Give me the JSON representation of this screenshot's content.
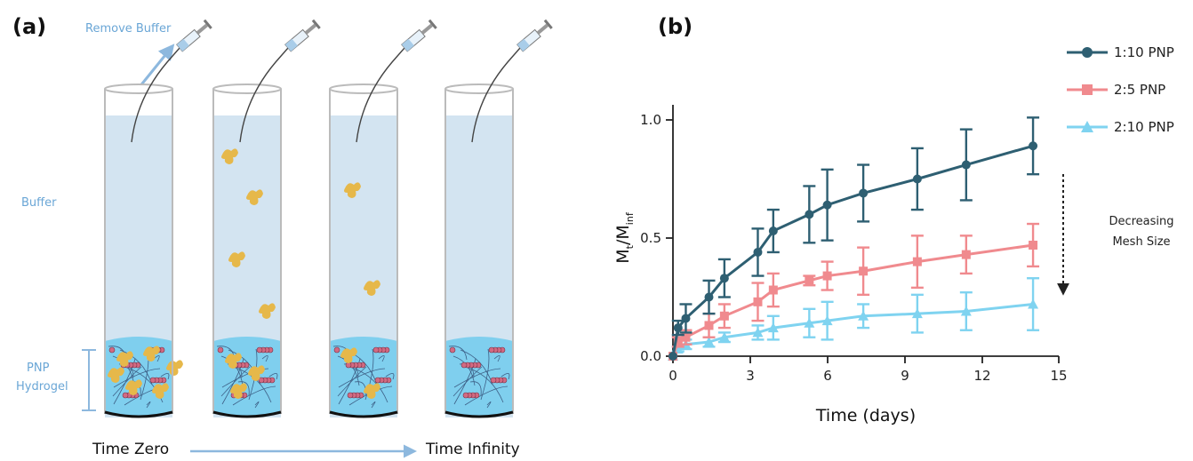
{
  "panel_a": {
    "label": "(a)",
    "remove_buffer": "Remove Buffer",
    "buffer": "Buffer",
    "hydrogel_line1": "PNP",
    "hydrogel_line2": "Hydrogel",
    "time_zero": "Time Zero",
    "time_infinity": "Time Infinity",
    "colors": {
      "buffer": "#d3e4f1",
      "gel": "#7fcfee",
      "cargo": "#e6b84a",
      "np": "#d36a82",
      "arrow": "#8db8de"
    },
    "icons": [
      "syringe-icon",
      "cargo-icon",
      "nanoparticle-icon"
    ]
  },
  "panel_b": {
    "label": "(b)",
    "annotation_line1": "Decreasing",
    "annotation_line2": "Mesh Size"
  },
  "chart_data": {
    "type": "line",
    "xlabel": "Time (days)",
    "ylabel_main": "M",
    "ylabel_sub1": "t",
    "ylabel_mid": "/M",
    "ylabel_sub2": "inf",
    "xlim": [
      0,
      15
    ],
    "ylim": [
      0,
      1.1
    ],
    "xticks": [
      "0",
      "3",
      "6",
      "9",
      "12",
      "15"
    ],
    "yticks": [
      "0.0",
      "0.5",
      "1.0"
    ],
    "grid": false,
    "legend_position": "top-right",
    "series": [
      {
        "name": "1:10 PNP",
        "color": "#2e5f72",
        "marker": "circle",
        "x": [
          0,
          0.2,
          0.5,
          1.4,
          2,
          3.3,
          3.9,
          5.3,
          6,
          7.4,
          9.5,
          11.4,
          14
        ],
        "y": [
          0,
          0.12,
          0.16,
          0.25,
          0.33,
          0.44,
          0.53,
          0.6,
          0.64,
          0.69,
          0.75,
          0.81,
          0.89
        ],
        "err": [
          0,
          0.03,
          0.06,
          0.07,
          0.08,
          0.1,
          0.09,
          0.12,
          0.15,
          0.12,
          0.13,
          0.15,
          0.12
        ]
      },
      {
        "name": "2:5 PNP",
        "color": "#f08a8e",
        "marker": "square",
        "x": [
          0,
          0.2,
          0.5,
          1.4,
          2,
          3.3,
          3.9,
          5.3,
          6,
          7.4,
          9.5,
          11.4,
          14
        ],
        "y": [
          0,
          0.06,
          0.08,
          0.13,
          0.17,
          0.23,
          0.28,
          0.32,
          0.34,
          0.36,
          0.4,
          0.43,
          0.47
        ],
        "err": [
          0,
          0.02,
          0.03,
          0.05,
          0.05,
          0.08,
          0.07,
          0.02,
          0.06,
          0.1,
          0.11,
          0.08,
          0.09
        ]
      },
      {
        "name": "2:10 PNP",
        "color": "#7fd3f0",
        "marker": "triangle",
        "x": [
          0,
          0.2,
          0.5,
          1.4,
          2,
          3.3,
          3.9,
          5.3,
          6,
          7.4,
          9.5,
          11.4,
          14
        ],
        "y": [
          0,
          0.03,
          0.05,
          0.06,
          0.08,
          0.1,
          0.12,
          0.14,
          0.15,
          0.17,
          0.18,
          0.19,
          0.22
        ],
        "err": [
          0,
          0.01,
          0.02,
          0.02,
          0.02,
          0.03,
          0.05,
          0.06,
          0.08,
          0.05,
          0.08,
          0.08,
          0.11
        ]
      }
    ]
  }
}
